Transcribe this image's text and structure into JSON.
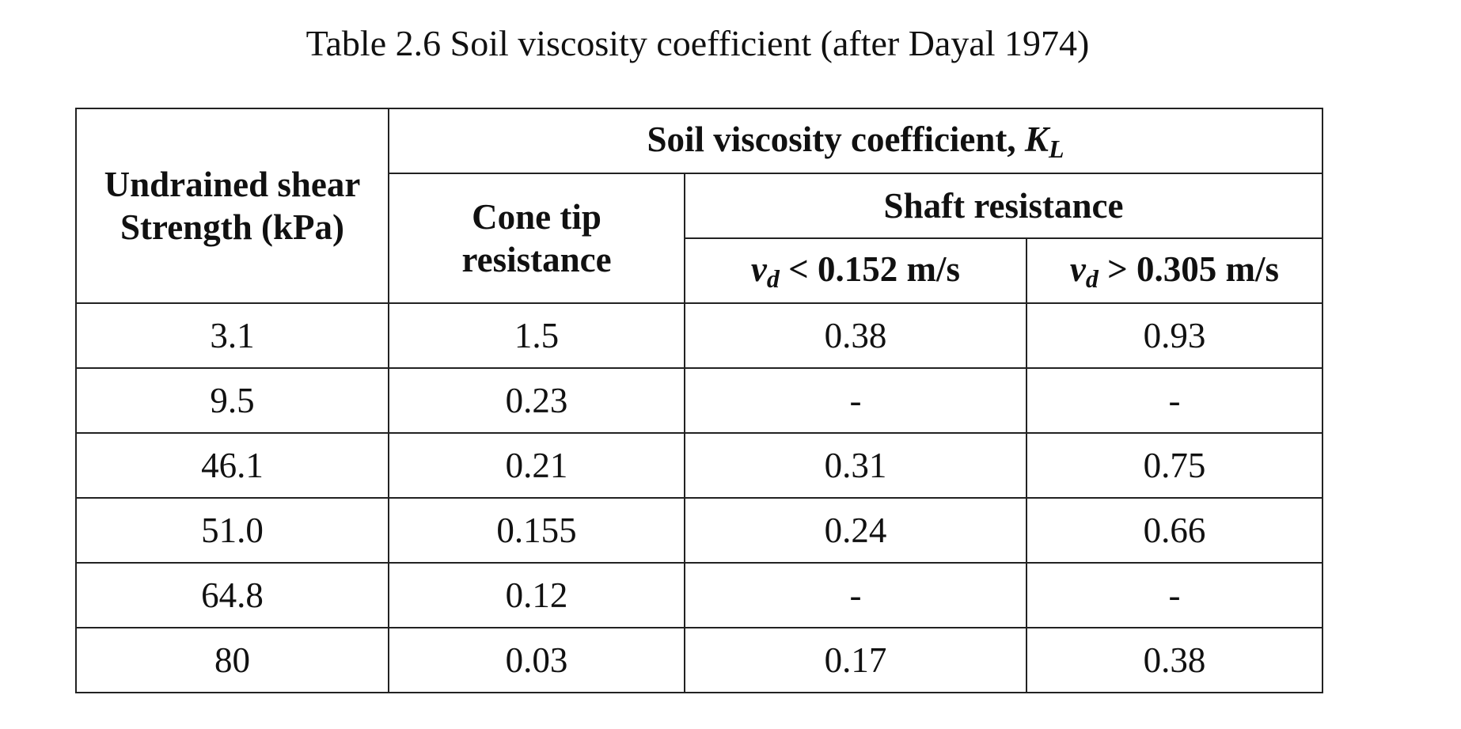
{
  "caption": "Table 2.6 Soil viscosity coefficient (after Dayal 1974)",
  "header": {
    "col1_line1": "Undrained shear",
    "col1_line2": "Strength (kPa)",
    "group_title_text": "Soil viscosity coefficient, ",
    "group_title_symbol": "K",
    "group_title_subscript": "L",
    "cone_line1": "Cone tip",
    "cone_line2": "resistance",
    "shaft_title": "Shaft resistance",
    "shaft_low": {
      "symbol": "v",
      "subscript": "d",
      "rest": " < 0.152 m/s"
    },
    "shaft_high": {
      "symbol": "v",
      "subscript": "d",
      "rest": " > 0.305 m/s"
    }
  },
  "rows": [
    {
      "strength": "3.1",
      "cone": "1.5",
      "shaft_low": "0.38",
      "shaft_high": "0.93"
    },
    {
      "strength": "9.5",
      "cone": "0.23",
      "shaft_low": "-",
      "shaft_high": "-"
    },
    {
      "strength": "46.1",
      "cone": "0.21",
      "shaft_low": "0.31",
      "shaft_high": "0.75"
    },
    {
      "strength": "51.0",
      "cone": "0.155",
      "shaft_low": "0.24",
      "shaft_high": "0.66"
    },
    {
      "strength": "64.8",
      "cone": "0.12",
      "shaft_low": "-",
      "shaft_high": "-"
    },
    {
      "strength": "80",
      "cone": "0.03",
      "shaft_low": "0.17",
      "shaft_high": "0.38"
    }
  ]
}
